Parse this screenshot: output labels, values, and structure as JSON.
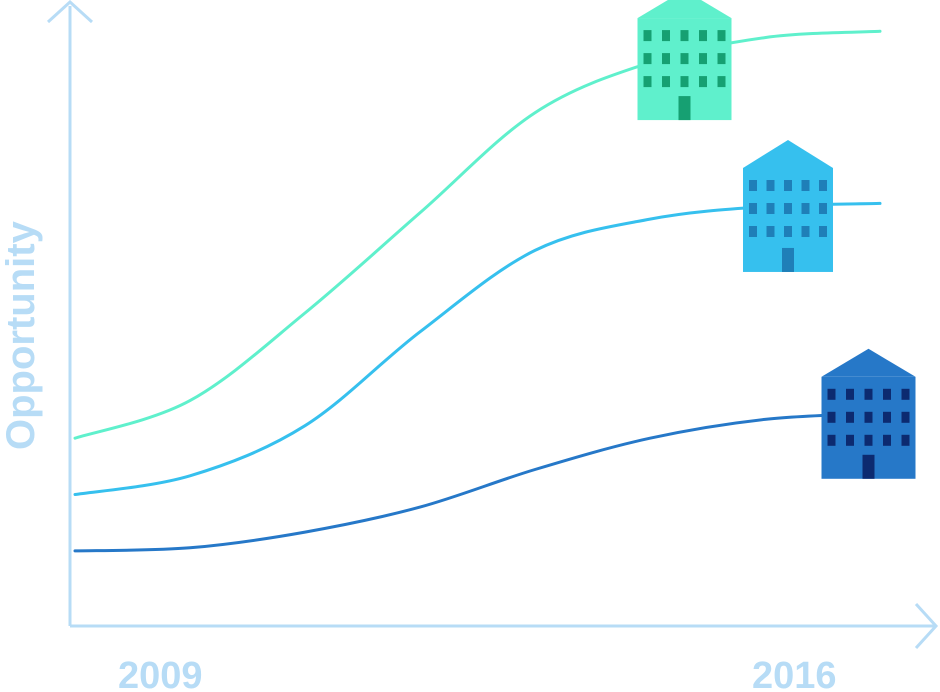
{
  "chart_data": {
    "type": "line",
    "title": "",
    "xlabel": "",
    "ylabel": "Opportunity",
    "x_ticks": [
      "2009",
      "2016"
    ],
    "grid": false,
    "legend": "none",
    "x": [
      2009,
      2010,
      2011,
      2012,
      2013,
      2014,
      2015,
      2016
    ],
    "ylim": [
      0,
      100
    ],
    "series": [
      {
        "values": [
          30,
          36,
          50,
          66,
          82,
          90,
          94,
          95
        ],
        "color": "#5ff0cc",
        "icon": "building-icon"
      },
      {
        "values": [
          21,
          24,
          32,
          47,
          60,
          65,
          67,
          67.5
        ],
        "color": "#36c0ee",
        "icon": "building-icon"
      },
      {
        "values": [
          12,
          12.5,
          15,
          19,
          25,
          30,
          33,
          34
        ],
        "color": "#2678c8",
        "icon": "building-icon"
      }
    ]
  },
  "colors": {
    "axis": "#b7dcf6",
    "building_1": "#5ff0cc",
    "building_1_window": "#16a072",
    "building_2": "#36c0ee",
    "building_2_window": "#1f7fb8",
    "building_3": "#2678c8",
    "building_3_window": "#0c2a70"
  }
}
